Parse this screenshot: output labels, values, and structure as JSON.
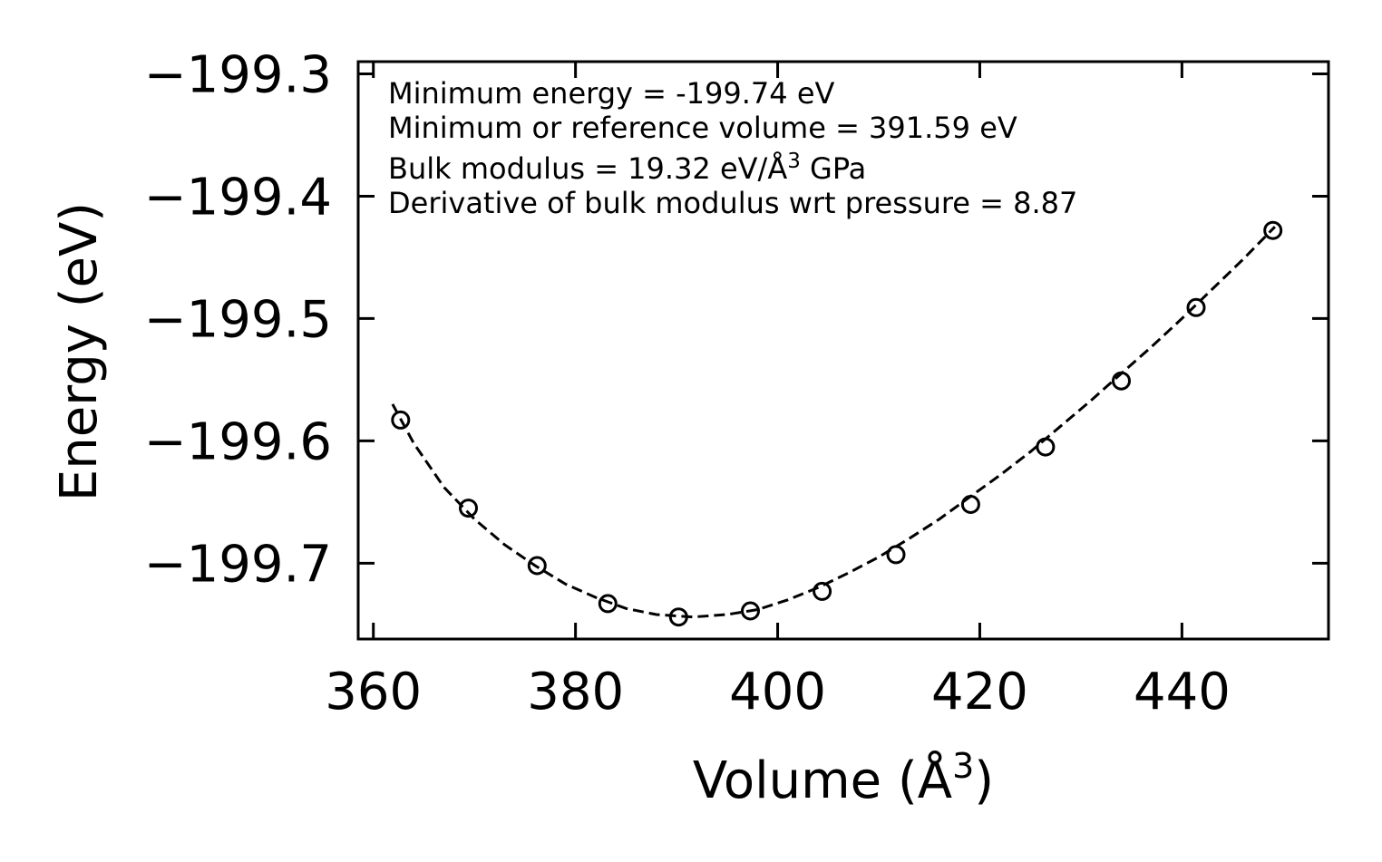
{
  "chart_data": {
    "type": "scatter",
    "title": "",
    "xlabel": "Volume (Å",
    "xlabel_sup": "3",
    "xlabel_close": ")",
    "ylabel": "Energy (eV)",
    "xlim": [
      358.5,
      454.5
    ],
    "ylim": [
      -199.762,
      -199.29
    ],
    "xticks": [
      360,
      380,
      400,
      420,
      440
    ],
    "xtick_labels": [
      "360",
      "380",
      "400",
      "420",
      "440"
    ],
    "yticks": [
      -199.3,
      -199.4,
      -199.5,
      -199.6,
      -199.7
    ],
    "ytick_labels": [
      "−199.3",
      "−199.4",
      "−199.5",
      "−199.6",
      "−199.7"
    ],
    "grid": false,
    "series": [
      {
        "name": "data",
        "style": "open-circle",
        "x": [
          362.7,
          369.4,
          376.2,
          383.2,
          390.2,
          397.3,
          404.4,
          411.7,
          419.1,
          426.5,
          434.0,
          441.4,
          449.0
        ],
        "y": [
          -199.583,
          -199.655,
          -199.702,
          -199.733,
          -199.744,
          -199.739,
          -199.723,
          -199.693,
          -199.652,
          -199.605,
          -199.551,
          -199.491,
          -199.428
        ]
      },
      {
        "name": "fit",
        "style": "dashed-line",
        "x": [
          361.9,
          364,
          367,
          370,
          373,
          376,
          379,
          382,
          385,
          388,
          391.6,
          395,
          398,
          401,
          404,
          407,
          410,
          413,
          416,
          419,
          422,
          425,
          428,
          431,
          434,
          437,
          440,
          443,
          446,
          449.2
        ],
        "y": [
          -199.57,
          -199.602,
          -199.638,
          -199.664,
          -199.685,
          -199.702,
          -199.717,
          -199.728,
          -199.737,
          -199.742,
          -199.744,
          -199.742,
          -199.738,
          -199.73,
          -199.72,
          -199.708,
          -199.695,
          -199.68,
          -199.664,
          -199.646,
          -199.628,
          -199.609,
          -199.588,
          -199.567,
          -199.545,
          -199.523,
          -199.5,
          -199.476,
          -199.452,
          -199.425
        ]
      }
    ],
    "annotations": [
      {
        "text": "Minimum energy = -199.74 eV"
      },
      {
        "text": "Minimum or reference volume = 391.59 eV"
      },
      {
        "text": "Bulk modulus = 19.32 eV/Å",
        "sup": "3",
        "tail": " GPa"
      },
      {
        "text": "Derivative of bulk modulus wrt pressure = 8.87"
      }
    ]
  }
}
